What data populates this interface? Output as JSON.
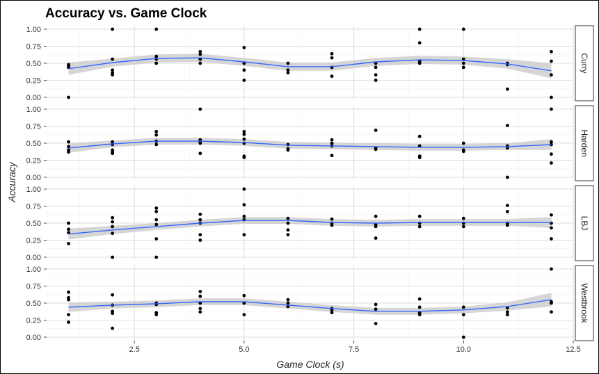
{
  "chart_data": {
    "type": "scatter",
    "title": "Accuracy vs. Game Clock",
    "xlabel": "Game Clock (s)",
    "ylabel": "Accuracy",
    "xlim": [
      0.5,
      12.5
    ],
    "ylim": [
      0,
      1
    ],
    "x_ticks": [
      "2.5",
      "5.0",
      "7.5",
      "10.0",
      "12.5"
    ],
    "x_tick_values": [
      2.5,
      5.0,
      7.5,
      10.0,
      12.5
    ],
    "y_ticks": [
      "0.00",
      "0.25",
      "0.50",
      "0.75",
      "1.00"
    ],
    "y_tick_values": [
      0,
      0.25,
      0.5,
      0.75,
      1.0
    ],
    "grid": true,
    "point_color": "#000000",
    "smooth_color": "#3366ff",
    "band_color": "#cccccc",
    "panels": [
      {
        "label": "Curry",
        "points": [
          [
            1,
            0.44
          ],
          [
            1,
            0.46
          ],
          [
            1,
            0.48
          ],
          [
            1,
            0.0
          ],
          [
            2,
            1.0
          ],
          [
            2,
            0.56
          ],
          [
            2,
            0.4
          ],
          [
            2,
            0.36
          ],
          [
            2,
            0.33
          ],
          [
            3,
            1.0
          ],
          [
            3,
            0.6
          ],
          [
            3,
            0.56
          ],
          [
            3,
            0.5
          ],
          [
            4,
            0.67
          ],
          [
            4,
            0.63
          ],
          [
            4,
            0.56
          ],
          [
            4,
            0.5
          ],
          [
            5,
            0.73
          ],
          [
            5,
            0.5
          ],
          [
            5,
            0.4
          ],
          [
            5,
            0.25
          ],
          [
            6,
            0.5
          ],
          [
            6,
            0.4
          ],
          [
            6,
            0.36
          ],
          [
            7,
            0.64
          ],
          [
            7,
            0.58
          ],
          [
            7,
            0.44
          ],
          [
            7,
            0.31
          ],
          [
            8,
            0.5
          ],
          [
            8,
            0.44
          ],
          [
            8,
            0.33
          ],
          [
            8,
            0.25
          ],
          [
            9,
            1.0
          ],
          [
            9,
            0.8
          ],
          [
            9,
            0.53
          ],
          [
            9,
            0.5
          ],
          [
            10,
            1.0
          ],
          [
            10,
            0.56
          ],
          [
            10,
            0.5
          ],
          [
            10,
            0.44
          ],
          [
            11,
            0.5
          ],
          [
            11,
            0.48
          ],
          [
            11,
            0.12
          ],
          [
            12,
            0.67
          ],
          [
            12,
            0.53
          ],
          [
            12,
            0.33
          ],
          [
            12,
            0.0
          ]
        ],
        "smooth": [
          [
            1,
            0.42
          ],
          [
            2,
            0.51
          ],
          [
            3,
            0.57
          ],
          [
            4,
            0.58
          ],
          [
            5,
            0.52
          ],
          [
            6,
            0.45
          ],
          [
            7,
            0.45
          ],
          [
            8,
            0.52
          ],
          [
            9,
            0.55
          ],
          [
            10,
            0.54
          ],
          [
            11,
            0.49
          ],
          [
            12,
            0.39
          ]
        ],
        "band": [
          0.09,
          0.06,
          0.06,
          0.06,
          0.06,
          0.06,
          0.06,
          0.06,
          0.06,
          0.06,
          0.07,
          0.11
        ]
      },
      {
        "label": "Harden",
        "points": [
          [
            1,
            0.52
          ],
          [
            1,
            0.45
          ],
          [
            1,
            0.4
          ],
          [
            1,
            0.37
          ],
          [
            2,
            0.52
          ],
          [
            2,
            0.48
          ],
          [
            2,
            0.4
          ],
          [
            2,
            0.37
          ],
          [
            2,
            0.35
          ],
          [
            3,
            0.67
          ],
          [
            3,
            0.62
          ],
          [
            3,
            0.53
          ],
          [
            3,
            0.48
          ],
          [
            4,
            1.0
          ],
          [
            4,
            0.55
          ],
          [
            4,
            0.52
          ],
          [
            4,
            0.5
          ],
          [
            4,
            0.35
          ],
          [
            5,
            0.67
          ],
          [
            5,
            0.63
          ],
          [
            5,
            0.56
          ],
          [
            5,
            0.5
          ],
          [
            5,
            0.31
          ],
          [
            5,
            0.29
          ],
          [
            6,
            0.48
          ],
          [
            6,
            0.42
          ],
          [
            6,
            0.4
          ],
          [
            7,
            0.55
          ],
          [
            7,
            0.5
          ],
          [
            7,
            0.46
          ],
          [
            7,
            0.32
          ],
          [
            8,
            0.69
          ],
          [
            8,
            0.43
          ],
          [
            8,
            0.41
          ],
          [
            9,
            0.6
          ],
          [
            9,
            0.46
          ],
          [
            9,
            0.31
          ],
          [
            9,
            0.29
          ],
          [
            10,
            0.5
          ],
          [
            10,
            0.4
          ],
          [
            10,
            0.38
          ],
          [
            11,
            0.76
          ],
          [
            11,
            0.46
          ],
          [
            11,
            0.43
          ],
          [
            11,
            0.0
          ],
          [
            12,
            1.0
          ],
          [
            12,
            0.52
          ],
          [
            12,
            0.48
          ],
          [
            12,
            0.34
          ],
          [
            12,
            0.21
          ]
        ],
        "smooth": [
          [
            1,
            0.43
          ],
          [
            2,
            0.49
          ],
          [
            3,
            0.53
          ],
          [
            4,
            0.53
          ],
          [
            5,
            0.51
          ],
          [
            6,
            0.47
          ],
          [
            7,
            0.46
          ],
          [
            8,
            0.45
          ],
          [
            9,
            0.44
          ],
          [
            10,
            0.44
          ],
          [
            11,
            0.45
          ],
          [
            12,
            0.48
          ]
        ],
        "band": [
          0.07,
          0.05,
          0.05,
          0.05,
          0.05,
          0.05,
          0.05,
          0.05,
          0.05,
          0.05,
          0.05,
          0.08
        ]
      },
      {
        "label": "LBJ",
        "points": [
          [
            1,
            0.5
          ],
          [
            1,
            0.41
          ],
          [
            1,
            0.36
          ],
          [
            1,
            0.2
          ],
          [
            2,
            0.58
          ],
          [
            2,
            0.52
          ],
          [
            2,
            0.45
          ],
          [
            2,
            0.35
          ],
          [
            2,
            0.0
          ],
          [
            3,
            0.72
          ],
          [
            3,
            0.67
          ],
          [
            3,
            0.55
          ],
          [
            3,
            0.48
          ],
          [
            3,
            0.27
          ],
          [
            3,
            0.0
          ],
          [
            4,
            0.63
          ],
          [
            4,
            0.55
          ],
          [
            4,
            0.5
          ],
          [
            4,
            0.33
          ],
          [
            4,
            0.25
          ],
          [
            5,
            1.0
          ],
          [
            5,
            0.77
          ],
          [
            5,
            0.6
          ],
          [
            5,
            0.55
          ],
          [
            5,
            0.33
          ],
          [
            6,
            0.57
          ],
          [
            6,
            0.5
          ],
          [
            6,
            0.4
          ],
          [
            6,
            0.33
          ],
          [
            7,
            0.56
          ],
          [
            7,
            0.5
          ],
          [
            7,
            0.47
          ],
          [
            8,
            0.6
          ],
          [
            8,
            0.48
          ],
          [
            8,
            0.45
          ],
          [
            8,
            0.28
          ],
          [
            9,
            0.6
          ],
          [
            9,
            0.5
          ],
          [
            9,
            0.45
          ],
          [
            10,
            0.57
          ],
          [
            10,
            0.5
          ],
          [
            10,
            0.45
          ],
          [
            11,
            0.76
          ],
          [
            11,
            0.67
          ],
          [
            11,
            0.5
          ],
          [
            11,
            0.47
          ],
          [
            12,
            0.62
          ],
          [
            12,
            0.5
          ],
          [
            12,
            0.43
          ],
          [
            12,
            0.27
          ]
        ],
        "smooth": [
          [
            1,
            0.34
          ],
          [
            2,
            0.4
          ],
          [
            3,
            0.45
          ],
          [
            4,
            0.5
          ],
          [
            5,
            0.54
          ],
          [
            6,
            0.54
          ],
          [
            7,
            0.51
          ],
          [
            8,
            0.5
          ],
          [
            9,
            0.51
          ],
          [
            10,
            0.51
          ],
          [
            11,
            0.51
          ],
          [
            12,
            0.51
          ]
        ],
        "band": [
          0.08,
          0.06,
          0.05,
          0.05,
          0.05,
          0.05,
          0.05,
          0.05,
          0.05,
          0.05,
          0.05,
          0.08
        ]
      },
      {
        "label": "Westbrook",
        "points": [
          [
            1,
            0.66
          ],
          [
            1,
            0.58
          ],
          [
            1,
            0.55
          ],
          [
            1,
            0.33
          ],
          [
            1,
            0.22
          ],
          [
            2,
            0.62
          ],
          [
            2,
            0.47
          ],
          [
            2,
            0.38
          ],
          [
            2,
            0.35
          ],
          [
            2,
            0.13
          ],
          [
            3,
            0.5
          ],
          [
            3,
            0.48
          ],
          [
            3,
            0.36
          ],
          [
            3,
            0.33
          ],
          [
            4,
            0.67
          ],
          [
            4,
            0.6
          ],
          [
            4,
            0.5
          ],
          [
            4,
            0.42
          ],
          [
            4,
            0.37
          ],
          [
            5,
            0.61
          ],
          [
            5,
            0.5
          ],
          [
            5,
            0.33
          ],
          [
            6,
            0.55
          ],
          [
            6,
            0.5
          ],
          [
            6,
            0.45
          ],
          [
            7,
            0.42
          ],
          [
            7,
            0.4
          ],
          [
            7,
            0.36
          ],
          [
            8,
            0.48
          ],
          [
            8,
            0.41
          ],
          [
            8,
            0.2
          ],
          [
            9,
            0.56
          ],
          [
            9,
            0.44
          ],
          [
            9,
            0.36
          ],
          [
            9,
            0.33
          ],
          [
            10,
            0.44
          ],
          [
            10,
            0.33
          ],
          [
            10,
            0.0
          ],
          [
            11,
            0.43
          ],
          [
            11,
            0.37
          ],
          [
            11,
            0.33
          ],
          [
            12,
            1.0
          ],
          [
            12,
            0.52
          ],
          [
            12,
            0.5
          ],
          [
            12,
            0.37
          ]
        ],
        "smooth": [
          [
            1,
            0.44
          ],
          [
            2,
            0.47
          ],
          [
            3,
            0.49
          ],
          [
            4,
            0.52
          ],
          [
            5,
            0.52
          ],
          [
            6,
            0.47
          ],
          [
            7,
            0.42
          ],
          [
            8,
            0.38
          ],
          [
            9,
            0.38
          ],
          [
            10,
            0.4
          ],
          [
            11,
            0.45
          ],
          [
            12,
            0.55
          ]
        ],
        "band": [
          0.07,
          0.05,
          0.05,
          0.05,
          0.05,
          0.05,
          0.05,
          0.05,
          0.05,
          0.05,
          0.06,
          0.1
        ]
      }
    ]
  }
}
